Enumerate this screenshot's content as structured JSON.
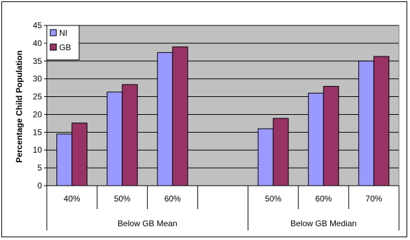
{
  "chart_data": {
    "type": "bar",
    "title": "",
    "xlabel": "",
    "ylabel": "Percentage Child Population",
    "ylim": [
      0,
      45
    ],
    "yticks": [
      0,
      5,
      10,
      15,
      20,
      25,
      30,
      35,
      40,
      45
    ],
    "grid": true,
    "legend_position": "top-left",
    "groups": [
      {
        "label": "Below  GB Mean",
        "categories": [
          "40%",
          "50%",
          "60%"
        ]
      },
      {
        "label": "Below  GB Median",
        "categories": [
          "50%",
          "60%",
          "70%"
        ]
      }
    ],
    "categories": [
      "40%",
      "50%",
      "60%",
      "",
      "50%",
      "60%",
      "70%"
    ],
    "series": [
      {
        "name": "NI",
        "color": "#9999ff",
        "values": [
          14.5,
          26.3,
          37.4,
          null,
          16.0,
          26.0,
          35.0
        ]
      },
      {
        "name": "GB",
        "color": "#993366",
        "values": [
          17.6,
          28.4,
          39.0,
          null,
          18.9,
          27.9,
          36.3
        ]
      }
    ],
    "plot_background": "#c0c0c0"
  }
}
